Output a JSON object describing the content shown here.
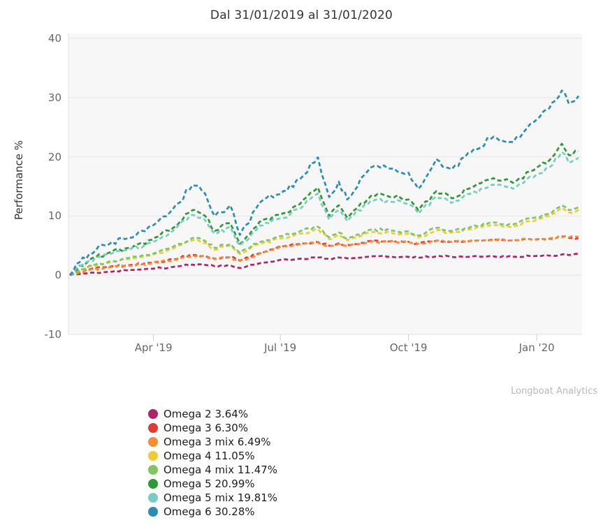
{
  "title": "Dal 31/01/2019 al 31/01/2020",
  "watermark": "Longboat Analytics",
  "colors": {
    "plot_background": "#f7f7f7",
    "gridline": "#e6e6e6",
    "axis_line": "#e0e0e0",
    "tick_mark": "#cccccc",
    "tick_label": "#666666",
    "title_text": "#333333",
    "watermark_text": "#b8b8b8"
  },
  "y_axis": {
    "label": "Performance %",
    "ticks": [
      {
        "value": 40,
        "label": "40"
      },
      {
        "value": 30,
        "label": "30"
      },
      {
        "value": 20,
        "label": "20"
      },
      {
        "value": 10,
        "label": "10"
      },
      {
        "value": 0,
        "label": "0"
      },
      {
        "value": -10,
        "label": "-10"
      }
    ]
  },
  "x_axis": {
    "ticks": [
      {
        "day": 60,
        "label": "Apr '19"
      },
      {
        "day": 151,
        "label": "Jul '19"
      },
      {
        "day": 243,
        "label": "Oct '19"
      },
      {
        "day": 335,
        "label": "Jan '20"
      }
    ]
  },
  "chart_data": {
    "type": "line",
    "line_style": "dashed",
    "title": "Dal 31/01/2019 al 31/01/2020",
    "xlabel": "",
    "ylabel": "Performance %",
    "ylim": [
      -10,
      40
    ],
    "grid": true,
    "legend_position": "bottom-left",
    "x_range_dates": [
      "31/01/2019",
      "31/01/2020"
    ],
    "x_unit": "days since 31/01/2019",
    "x": [
      0,
      7,
      14,
      28,
      42,
      59,
      74,
      88,
      97,
      104,
      115,
      122,
      136,
      151,
      165,
      178,
      186,
      193,
      199,
      216,
      230,
      243,
      250,
      263,
      274,
      288,
      304,
      318,
      335,
      344,
      353,
      358,
      365
    ],
    "series": [
      {
        "name": "Omega 2",
        "final_value": 3.64,
        "label": "Omega 2 3.64%",
        "color": "#AE2565",
        "values": [
          0,
          0.2,
          0.4,
          0.6,
          0.8,
          1.1,
          1.4,
          1.8,
          1.75,
          1.5,
          1.65,
          1.2,
          2.0,
          2.6,
          2.8,
          3.0,
          2.8,
          3.0,
          2.85,
          3.2,
          3.15,
          3.1,
          2.95,
          3.2,
          3.1,
          3.15,
          3.2,
          3.15,
          3.25,
          3.3,
          3.5,
          3.4,
          3.64
        ]
      },
      {
        "name": "Omega 3",
        "final_value": 6.3,
        "label": "Omega 3 6.30%",
        "color": "#E03C35",
        "values": [
          0,
          0.5,
          1.0,
          1.4,
          1.7,
          2.1,
          2.7,
          3.4,
          3.3,
          2.8,
          3.1,
          2.5,
          3.7,
          4.9,
          5.3,
          5.6,
          5.0,
          5.4,
          5.1,
          5.8,
          5.75,
          5.65,
          5.35,
          5.85,
          5.65,
          5.85,
          6.0,
          5.9,
          6.05,
          6.15,
          6.5,
          6.3,
          6.3
        ]
      },
      {
        "name": "Omega 3 mix",
        "final_value": 6.49,
        "label": "Omega 3 mix 6.49%",
        "color": "#F68D35",
        "values": [
          0,
          0.5,
          0.9,
          1.3,
          1.6,
          2.0,
          2.6,
          3.3,
          3.2,
          2.7,
          3.0,
          2.4,
          3.6,
          4.8,
          5.2,
          5.5,
          4.9,
          5.3,
          5.0,
          5.7,
          5.7,
          5.6,
          5.3,
          5.8,
          5.6,
          5.8,
          6.0,
          5.9,
          6.1,
          6.2,
          6.6,
          6.4,
          6.49
        ]
      },
      {
        "name": "Omega 4",
        "final_value": 11.05,
        "label": "Omega 4 11.05%",
        "color": "#F0CB35",
        "values": [
          0,
          0.9,
          1.5,
          2.1,
          2.7,
          3.4,
          4.5,
          5.9,
          5.5,
          4.3,
          5.0,
          3.6,
          5.3,
          6.2,
          7.0,
          7.8,
          6.1,
          6.8,
          5.9,
          7.3,
          7.2,
          7.0,
          6.4,
          7.6,
          7.2,
          7.8,
          8.5,
          8.2,
          9.4,
          10.0,
          11.4,
          10.6,
          11.05
        ]
      },
      {
        "name": "Omega 4 mix",
        "final_value": 11.47,
        "label": "Omega 4 mix 11.47%",
        "color": "#7FC85F",
        "values": [
          0,
          1.0,
          1.6,
          2.3,
          2.9,
          3.6,
          4.8,
          6.3,
          5.8,
          4.6,
          5.3,
          3.8,
          5.6,
          6.6,
          7.4,
          8.2,
          6.4,
          7.2,
          6.2,
          7.7,
          7.6,
          7.4,
          6.7,
          8.0,
          7.5,
          8.2,
          8.9,
          8.6,
          9.8,
          10.4,
          11.8,
          11.0,
          11.47
        ]
      },
      {
        "name": "Omega 5",
        "final_value": 20.99,
        "label": "Omega 5 20.99%",
        "color": "#2F9839",
        "values": [
          0,
          1.6,
          2.6,
          3.8,
          4.6,
          6.0,
          8.0,
          11.0,
          10.0,
          7.5,
          8.8,
          5.3,
          9.0,
          10.2,
          12.0,
          14.8,
          10.0,
          11.8,
          9.7,
          13.4,
          13.2,
          12.8,
          11.0,
          14.2,
          13.0,
          14.8,
          16.4,
          15.6,
          18.2,
          19.4,
          22.2,
          20.3,
          20.99
        ]
      },
      {
        "name": "Omega 5 mix",
        "final_value": 19.81,
        "label": "Omega 5 mix 19.81%",
        "color": "#78CDC2",
        "values": [
          0,
          1.5,
          2.4,
          3.5,
          4.3,
          5.6,
          7.5,
          10.2,
          9.3,
          7.0,
          8.2,
          5.0,
          8.4,
          9.6,
          11.2,
          13.8,
          9.4,
          11.0,
          9.1,
          12.6,
          12.4,
          12.0,
          10.4,
          13.3,
          12.2,
          13.8,
          15.3,
          14.6,
          17.0,
          18.2,
          20.8,
          19.0,
          19.81
        ]
      },
      {
        "name": "Omega 6",
        "final_value": 30.28,
        "label": "Omega 6 30.28%",
        "color": "#2B8DB1",
        "values": [
          0,
          2.2,
          3.6,
          5.2,
          6.3,
          8.3,
          11.2,
          15.2,
          13.8,
          10.0,
          11.8,
          6.8,
          12.2,
          13.7,
          16.2,
          19.9,
          13.2,
          15.8,
          12.8,
          18.2,
          18.0,
          17.3,
          14.6,
          19.6,
          17.9,
          20.8,
          23.4,
          22.5,
          26.3,
          28.2,
          31.2,
          29.0,
          30.28
        ]
      }
    ]
  }
}
